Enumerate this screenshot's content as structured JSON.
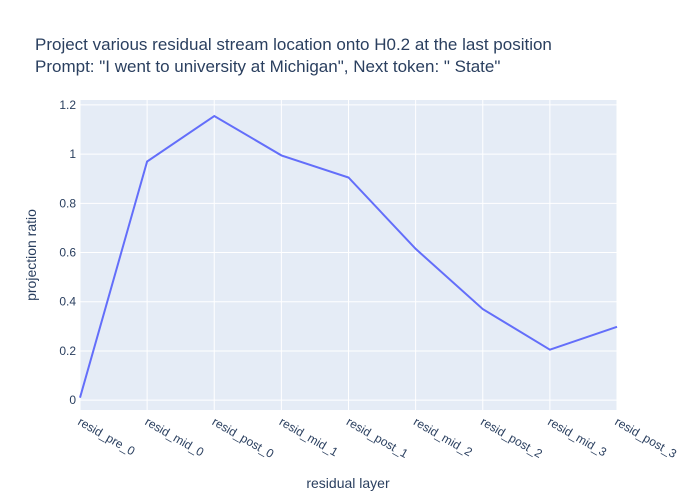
{
  "chart_data": {
    "type": "line",
    "title_line1": "Project various residual stream location onto H0.2 at the last position",
    "title_line2": "Prompt: \"I went to university at Michigan\", Next token: \" State\"",
    "xlabel": "residual layer",
    "ylabel": "projection ratio",
    "categories": [
      "resid_pre_0",
      "resid_mid_0",
      "resid_post_0",
      "resid_mid_1",
      "resid_post_1",
      "resid_mid_2",
      "resid_post_2",
      "resid_mid_3",
      "resid_post_3"
    ],
    "values": [
      0.01,
      0.97,
      1.155,
      0.995,
      0.905,
      0.615,
      0.37,
      0.205,
      0.298
    ],
    "yticks": [
      0,
      0.2,
      0.4,
      0.6,
      0.8,
      1,
      1.2
    ],
    "ylim": [
      -0.04,
      1.22
    ],
    "grid": true,
    "line_color": "#636efa",
    "plot_bg": "#e5ecf6",
    "grid_color": "#ffffff"
  }
}
